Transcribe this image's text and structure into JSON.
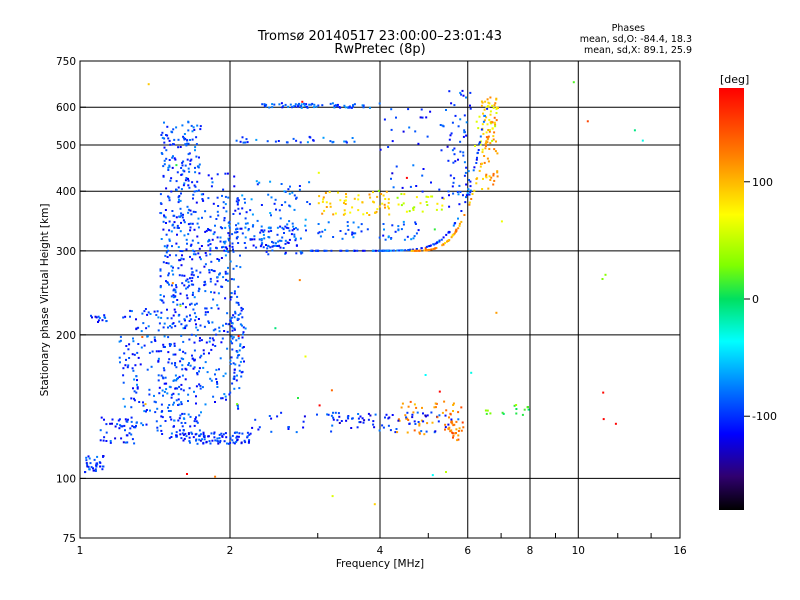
{
  "chart_data": {
    "type": "scatter",
    "title": "Tromsø 20140517 23:00:00–23:01:43",
    "subtitle": "RwPretec (8p)",
    "annotation": {
      "heading": "Phases",
      "line1": "mean, sd,O: -84.4, 18.3",
      "line2": "mean, sd,X:  89.1, 25.9"
    },
    "xlabel": "Frequency [MHz]",
    "ylabel": "Stationary phase Virtual Height [km]",
    "x_scale": "log",
    "y_scale": "log",
    "xlim": [
      1,
      16
    ],
    "ylim": [
      75,
      750
    ],
    "x_ticks": [
      {
        "value": 1,
        "label": "1"
      },
      {
        "value": 2,
        "label": "2"
      },
      {
        "value": 4,
        "label": "4"
      },
      {
        "value": 6,
        "label": "6"
      },
      {
        "value": 8,
        "label": "8"
      },
      {
        "value": 10,
        "label": "10"
      },
      {
        "value": 16,
        "label": "16"
      }
    ],
    "y_ticks": [
      {
        "value": 75,
        "label": "75"
      },
      {
        "value": 100,
        "label": "100"
      },
      {
        "value": 200,
        "label": "200"
      },
      {
        "value": 300,
        "label": "300"
      },
      {
        "value": 400,
        "label": "400"
      },
      {
        "value": 500,
        "label": "500"
      },
      {
        "value": 600,
        "label": "600"
      },
      {
        "value": 750,
        "label": "750"
      }
    ],
    "grid": true,
    "colorbar": {
      "label": "[deg]",
      "range": [
        -180,
        180
      ],
      "ticks": [
        {
          "value": 100,
          "label": "100"
        },
        {
          "value": 0,
          "label": "0"
        },
        {
          "value": -100,
          "label": "-100"
        }
      ]
    },
    "point_groups": [
      {
        "x_range": [
          1.02,
          1.12
        ],
        "y_range": [
          103,
          112
        ],
        "phase": -100,
        "count": 35
      },
      {
        "x_range": [
          1.05,
          1.14
        ],
        "y_range": [
          212,
          220
        ],
        "phase": -100,
        "count": 14
      },
      {
        "x_range": [
          1.1,
          1.3
        ],
        "y_range": [
          118,
          135
        ],
        "phase": -100,
        "count": 40
      },
      {
        "x_range": [
          1.2,
          1.45
        ],
        "y_range": [
          125,
          230
        ],
        "phase": -95,
        "count": 120
      },
      {
        "x_range": [
          1.45,
          1.75
        ],
        "y_range": [
          120,
          560
        ],
        "phase": -95,
        "count": 520
      },
      {
        "x_range": [
          1.75,
          2.1
        ],
        "y_range": [
          140,
          440
        ],
        "phase": -95,
        "count": 220
      },
      {
        "x_range": [
          1.6,
          2.2
        ],
        "y_range": [
          118,
          125
        ],
        "phase": -100,
        "count": 90
      },
      {
        "x_range": [
          2.0,
          2.15
        ],
        "y_range": [
          160,
          230
        ],
        "phase": -95,
        "count": 50
      },
      {
        "x_range": [
          1.8,
          2.8
        ],
        "y_range": [
          295,
          340
        ],
        "phase": -95,
        "count": 130
      },
      {
        "x_range": [
          2.1,
          2.9
        ],
        "y_range": [
          330,
          420
        ],
        "phase": -85,
        "count": 60
      },
      {
        "x_range": [
          2.2,
          4.0
        ],
        "y_range": [
          598,
          612
        ],
        "phase": -90,
        "count": 70
      },
      {
        "x_range": [
          2.0,
          3.6
        ],
        "y_range": [
          505,
          520
        ],
        "phase": -90,
        "count": 30
      },
      {
        "x_range": [
          2.2,
          5.8
        ],
        "y_range": [
          125,
          138
        ],
        "phase": -100,
        "count": 70
      },
      {
        "x_range": [
          3.0,
          4.2
        ],
        "y_range": [
          355,
          400
        ],
        "phase": 95,
        "count": 60
      },
      {
        "x_range": [
          4.3,
          5.4
        ],
        "y_range": [
          360,
          395
        ],
        "phase": 60,
        "count": 25
      },
      {
        "x_range": [
          4.3,
          5.9
        ],
        "y_range": [
          123,
          145
        ],
        "phase": 120,
        "count": 45
      },
      {
        "x_range": [
          5.4,
          5.9
        ],
        "y_range": [
          120,
          132
        ],
        "phase": 130,
        "count": 25
      },
      {
        "x_range": [
          3.0,
          4.8
        ],
        "y_range": [
          315,
          345
        ],
        "phase": -90,
        "count": 50
      },
      {
        "x_range": [
          3.0,
          5.0
        ],
        "y_range": [
          130,
          138
        ],
        "phase": -110,
        "count": 25
      },
      {
        "x_range": [
          6.4,
          6.9
        ],
        "y_range": [
          400,
          640
        ],
        "phase": 110,
        "count": 50
      },
      {
        "x_range": [
          6.2,
          6.9
        ],
        "y_range": [
          480,
          620
        ],
        "phase": 70,
        "count": 30
      },
      {
        "x_range": [
          5.5,
          6.1
        ],
        "y_range": [
          350,
          650
        ],
        "phase": -95,
        "count": 60
      },
      {
        "x_range": [
          4.0,
          5.5
        ],
        "y_range": [
          380,
          600
        ],
        "phase": -100,
        "count": 40
      },
      {
        "x_range": [
          6.5,
          8.0
        ],
        "y_range": [
          135,
          143
        ],
        "phase": 20,
        "count": 15
      },
      {
        "x_range": [
          1.3,
          16
        ],
        "y_range": [
          82,
          700
        ],
        "phase": 90,
        "count": 40
      }
    ],
    "ridges": [
      {
        "x0": 2.9,
        "x1": 6.6,
        "y_pow": 7,
        "phase": -95,
        "count": 110
      },
      {
        "x0": 4.6,
        "x1": 6.85,
        "y_pow": 3.3,
        "phase": 110,
        "count": 80
      }
    ],
    "ridge_base_height": 300,
    "ridge_top_height": 640
  }
}
